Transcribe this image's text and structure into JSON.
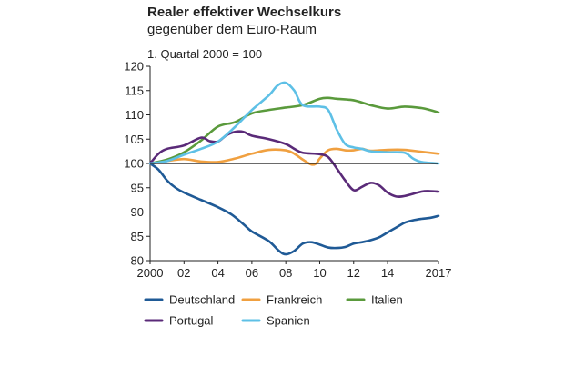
{
  "chart_data": {
    "type": "line",
    "title": "Realer effektiver Wechselkurs",
    "subtitle": "gegenüber dem Euro-Raum",
    "unit_label": "1. Quartal 2000 = 100",
    "xlabel": "",
    "ylabel": "",
    "xlim": [
      2000,
      2017
    ],
    "ylim": [
      80,
      120
    ],
    "yticks": [
      80,
      85,
      90,
      95,
      100,
      105,
      110,
      115,
      120
    ],
    "xticks": [
      {
        "value": 2000,
        "label": "2000"
      },
      {
        "value": 2002,
        "label": "02"
      },
      {
        "value": 2004,
        "label": "04"
      },
      {
        "value": 2006,
        "label": "06"
      },
      {
        "value": 2008,
        "label": "08"
      },
      {
        "value": 2010,
        "label": "10"
      },
      {
        "value": 2012,
        "label": "12"
      },
      {
        "value": 2014,
        "label": "14"
      },
      {
        "value": 2017,
        "label": "2017"
      }
    ],
    "reference_line": 100,
    "grid": false,
    "legend_position": "bottom",
    "series": [
      {
        "name": "Deutschland",
        "color": "#1f5a96",
        "points": [
          [
            2000,
            100
          ],
          [
            2000.5,
            98.7
          ],
          [
            2001,
            96.5
          ],
          [
            2001.5,
            95
          ],
          [
            2002,
            94
          ],
          [
            2003,
            92.5
          ],
          [
            2004,
            91
          ],
          [
            2004.8,
            89.5
          ],
          [
            2005.5,
            87.5
          ],
          [
            2006,
            86
          ],
          [
            2007,
            84
          ],
          [
            2007.6,
            82
          ],
          [
            2008,
            81.3
          ],
          [
            2008.5,
            82
          ],
          [
            2009,
            83.5
          ],
          [
            2009.5,
            83.8
          ],
          [
            2010,
            83.3
          ],
          [
            2010.5,
            82.7
          ],
          [
            2011,
            82.6
          ],
          [
            2011.5,
            82.8
          ],
          [
            2012,
            83.5
          ],
          [
            2012.5,
            83.8
          ],
          [
            2013,
            84.2
          ],
          [
            2013.5,
            84.8
          ],
          [
            2014,
            85.8
          ],
          [
            2014.5,
            86.8
          ],
          [
            2015,
            87.8
          ],
          [
            2015.5,
            88.3
          ],
          [
            2016,
            88.6
          ],
          [
            2016.5,
            88.8
          ],
          [
            2017,
            89.2
          ]
        ]
      },
      {
        "name": "Frankreich",
        "color": "#f0a040",
        "points": [
          [
            2000,
            100
          ],
          [
            2001,
            100.5
          ],
          [
            2002,
            100.9
          ],
          [
            2003,
            100.4
          ],
          [
            2004,
            100.3
          ],
          [
            2005,
            101
          ],
          [
            2006,
            102
          ],
          [
            2007,
            102.8
          ],
          [
            2008,
            102.7
          ],
          [
            2008.5,
            102
          ],
          [
            2009,
            100.8
          ],
          [
            2009.5,
            99.8
          ],
          [
            2009.8,
            100
          ],
          [
            2010,
            101
          ],
          [
            2010.5,
            102.7
          ],
          [
            2011,
            103
          ],
          [
            2011.5,
            102.7
          ],
          [
            2012,
            102.7
          ],
          [
            2012.5,
            103
          ],
          [
            2013,
            102.6
          ],
          [
            2014,
            102.8
          ],
          [
            2015,
            102.8
          ],
          [
            2016,
            102.4
          ],
          [
            2017,
            102
          ]
        ]
      },
      {
        "name": "Italien",
        "color": "#5a9a3c",
        "points": [
          [
            2000,
            100
          ],
          [
            2001,
            100.8
          ],
          [
            2002,
            102.3
          ],
          [
            2003,
            104.7
          ],
          [
            2004,
            107.6
          ],
          [
            2005,
            108.5
          ],
          [
            2006,
            110.3
          ],
          [
            2007,
            111
          ],
          [
            2008,
            111.5
          ],
          [
            2009,
            112
          ],
          [
            2010,
            113.3
          ],
          [
            2010.5,
            113.5
          ],
          [
            2011,
            113.3
          ],
          [
            2012,
            113
          ],
          [
            2013,
            112
          ],
          [
            2014,
            111.3
          ],
          [
            2015,
            111.7
          ],
          [
            2016,
            111.4
          ],
          [
            2016.5,
            111
          ],
          [
            2017,
            110.5
          ]
        ]
      },
      {
        "name": "Portugal",
        "color": "#5a2a78",
        "points": [
          [
            2000,
            100
          ],
          [
            2000.5,
            102
          ],
          [
            2001,
            103
          ],
          [
            2002,
            103.7
          ],
          [
            2003,
            105.3
          ],
          [
            2003.5,
            104.6
          ],
          [
            2004,
            104.5
          ],
          [
            2004.5,
            105.8
          ],
          [
            2005,
            106.5
          ],
          [
            2005.5,
            106.5
          ],
          [
            2006,
            105.7
          ],
          [
            2007,
            105
          ],
          [
            2008,
            104
          ],
          [
            2008.5,
            103
          ],
          [
            2009,
            102.2
          ],
          [
            2010,
            101.9
          ],
          [
            2010.5,
            101.3
          ],
          [
            2011,
            99
          ],
          [
            2011.5,
            96.5
          ],
          [
            2012,
            94.5
          ],
          [
            2012.5,
            95.2
          ],
          [
            2013,
            96
          ],
          [
            2013.5,
            95.5
          ],
          [
            2014,
            94
          ],
          [
            2014.5,
            93.2
          ],
          [
            2015,
            93.3
          ],
          [
            2016,
            94.2
          ],
          [
            2016.5,
            94.3
          ],
          [
            2017,
            94.2
          ]
        ]
      },
      {
        "name": "Spanien",
        "color": "#5ec0e6",
        "points": [
          [
            2000,
            100
          ],
          [
            2001,
            100.5
          ],
          [
            2002,
            101.8
          ],
          [
            2003,
            103
          ],
          [
            2004,
            104.5
          ],
          [
            2005,
            107.5
          ],
          [
            2006,
            111
          ],
          [
            2007,
            114
          ],
          [
            2007.5,
            116
          ],
          [
            2008,
            116.6
          ],
          [
            2008.5,
            115
          ],
          [
            2009,
            112
          ],
          [
            2010,
            111.7
          ],
          [
            2010.5,
            111
          ],
          [
            2011,
            107
          ],
          [
            2011.5,
            104
          ],
          [
            2012,
            103.3
          ],
          [
            2012.5,
            103
          ],
          [
            2013,
            102.5
          ],
          [
            2014,
            102.3
          ],
          [
            2015,
            102.2
          ],
          [
            2015.5,
            101
          ],
          [
            2016,
            100.3
          ],
          [
            2017,
            100
          ]
        ]
      }
    ]
  }
}
